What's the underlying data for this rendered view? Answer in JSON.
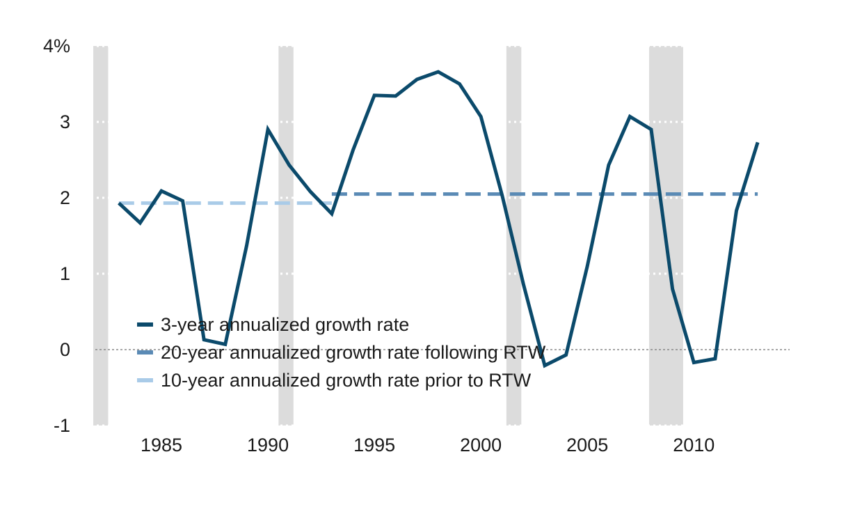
{
  "chart_data": {
    "type": "line",
    "title": "",
    "xlabel": "",
    "ylabel": "",
    "xlim": [
      1981.7,
      2014.5
    ],
    "ylim": [
      -1,
      4
    ],
    "x_ticks": [
      1985,
      1990,
      1995,
      2000,
      2005,
      2010
    ],
    "x_tick_labels": [
      "1985",
      "1990",
      "1995",
      "2000",
      "2005",
      "2010"
    ],
    "y_ticks": [
      4,
      3,
      2,
      1,
      0,
      -1
    ],
    "y_tick_labels": [
      "4%",
      "3",
      "2",
      "1",
      "0",
      "-1"
    ],
    "grid": "horizontal dotted",
    "legend_position": "lower-left",
    "recession_bands": [
      {
        "start": 1981.8,
        "end": 1982.5
      },
      {
        "start": 1990.5,
        "end": 1991.2
      },
      {
        "start": 2001.2,
        "end": 2001.9
      },
      {
        "start": 2007.9,
        "end": 2009.5
      }
    ],
    "series": [
      {
        "name": "3-year annualized growth rate",
        "style": "solid",
        "color": "#0b4a6b",
        "x": [
          1983,
          1984,
          1985,
          1986,
          1987,
          1988,
          1989,
          1990,
          1991,
          1992,
          1993,
          1994,
          1995,
          1996,
          1997,
          1998,
          1999,
          2000,
          2001,
          2002,
          2003,
          2004,
          2005,
          2006,
          2007,
          2008,
          2009,
          2010,
          2011,
          2012,
          2013
        ],
        "values": [
          1.93,
          1.67,
          2.09,
          1.96,
          0.13,
          0.07,
          1.37,
          2.9,
          2.43,
          2.08,
          1.79,
          2.63,
          3.35,
          3.34,
          3.56,
          3.66,
          3.5,
          3.07,
          2.03,
          0.86,
          -0.21,
          -0.07,
          1.1,
          2.43,
          3.07,
          2.9,
          0.8,
          -0.17,
          -0.12,
          1.83,
          2.73
        ]
      },
      {
        "name": "20-year annualized growth rate following RTW",
        "style": "dashed",
        "color": "#5a8ab5",
        "x": [
          1993,
          2013
        ],
        "values": [
          2.05,
          2.05
        ]
      },
      {
        "name": "10-year annualized growth rate prior to RTW",
        "style": "dashed",
        "color": "#a9cbe8",
        "x": [
          1983,
          1993
        ],
        "values": [
          1.93,
          1.93
        ]
      }
    ],
    "colors": {
      "recession": "#dcdcdc",
      "grid": "#ffffff",
      "zero_line": "#888888"
    }
  }
}
